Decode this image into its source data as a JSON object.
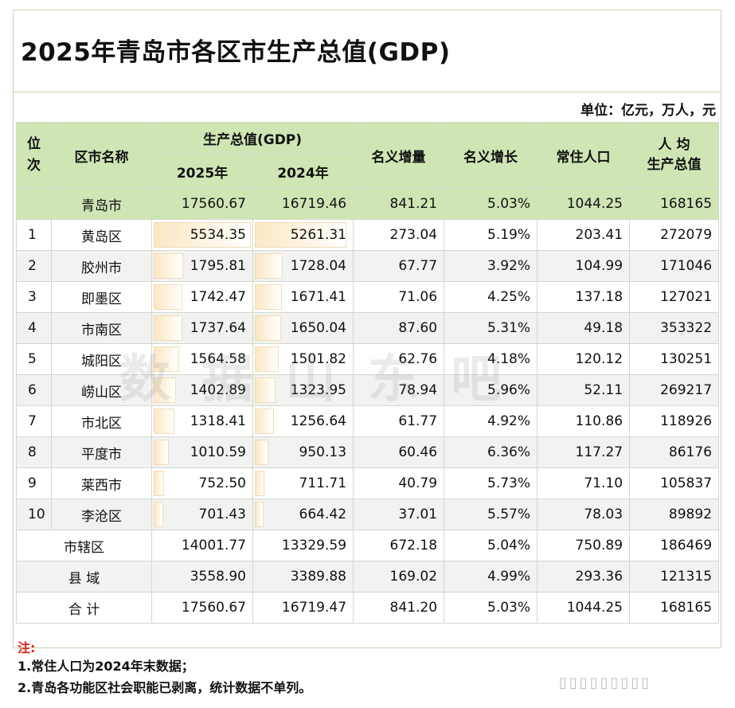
{
  "title": "2025年青岛市各区市生产总值(GDP)",
  "unit": "单位：亿元，万人，元",
  "headers": {
    "rank": "位次",
    "name": "区市名称",
    "gdp": "生产总值(GDP)",
    "y2025": "2025年",
    "y2024": "2024年",
    "nominal_increase": "名义增量",
    "nominal_growth": "名义增长",
    "population": "常住人口",
    "per_capita": "人 均\n生产总值"
  },
  "city_total": {
    "name": "青岛市",
    "gdp2025": "17560.67",
    "gdp2024": "16719.46",
    "increase": "841.21",
    "growth": "5.03%",
    "population": "1044.25",
    "per_capita": "168165"
  },
  "rows": [
    {
      "rank": "1",
      "name": "黄岛区",
      "gdp2025": "5534.35",
      "gdp2024": "5261.31",
      "increase": "273.04",
      "growth": "5.19%",
      "population": "203.41",
      "per_capita": "272079",
      "v2025": 5534.35,
      "v2024": 5261.31
    },
    {
      "rank": "2",
      "name": "胶州市",
      "gdp2025": "1795.81",
      "gdp2024": "1728.04",
      "increase": "67.77",
      "growth": "3.92%",
      "population": "104.99",
      "per_capita": "171046",
      "v2025": 1795.81,
      "v2024": 1728.04
    },
    {
      "rank": "3",
      "name": "即墨区",
      "gdp2025": "1742.47",
      "gdp2024": "1671.41",
      "increase": "71.06",
      "growth": "4.25%",
      "population": "137.18",
      "per_capita": "127021",
      "v2025": 1742.47,
      "v2024": 1671.41
    },
    {
      "rank": "4",
      "name": "市南区",
      "gdp2025": "1737.64",
      "gdp2024": "1650.04",
      "increase": "87.60",
      "growth": "5.31%",
      "population": "49.18",
      "per_capita": "353322",
      "v2025": 1737.64,
      "v2024": 1650.04
    },
    {
      "rank": "5",
      "name": "城阳区",
      "gdp2025": "1564.58",
      "gdp2024": "1501.82",
      "increase": "62.76",
      "growth": "4.18%",
      "population": "120.12",
      "per_capita": "130251",
      "v2025": 1564.58,
      "v2024": 1501.82
    },
    {
      "rank": "6",
      "name": "崂山区",
      "gdp2025": "1402.89",
      "gdp2024": "1323.95",
      "increase": "78.94",
      "growth": "5.96%",
      "population": "52.11",
      "per_capita": "269217",
      "v2025": 1402.89,
      "v2024": 1323.95
    },
    {
      "rank": "7",
      "name": "市北区",
      "gdp2025": "1318.41",
      "gdp2024": "1256.64",
      "increase": "61.77",
      "growth": "4.92%",
      "population": "110.86",
      "per_capita": "118926",
      "v2025": 1318.41,
      "v2024": 1256.64
    },
    {
      "rank": "8",
      "name": "平度市",
      "gdp2025": "1010.59",
      "gdp2024": "950.13",
      "increase": "60.46",
      "growth": "6.36%",
      "population": "117.27",
      "per_capita": "86176",
      "v2025": 1010.59,
      "v2024": 950.13
    },
    {
      "rank": "9",
      "name": "莱西市",
      "gdp2025": "752.50",
      "gdp2024": "711.71",
      "increase": "40.79",
      "growth": "5.73%",
      "population": "71.10",
      "per_capita": "105837",
      "v2025": 752.5,
      "v2024": 711.71
    },
    {
      "rank": "10",
      "name": "李沧区",
      "gdp2025": "701.43",
      "gdp2024": "664.42",
      "increase": "37.01",
      "growth": "5.57%",
      "population": "78.03",
      "per_capita": "89892",
      "v2025": 701.43,
      "v2024": 664.42
    }
  ],
  "summary": [
    {
      "name": "市辖区",
      "gdp2025": "14001.77",
      "gdp2024": "13329.59",
      "increase": "672.18",
      "growth": "5.04%",
      "population": "750.89",
      "per_capita": "186469"
    },
    {
      "name": "县 域",
      "gdp2025": "3558.90",
      "gdp2024": "3389.88",
      "increase": "169.02",
      "growth": "4.99%",
      "population": "293.36",
      "per_capita": "121315"
    },
    {
      "name": "合 计",
      "gdp2025": "17560.67",
      "gdp2024": "16719.47",
      "increase": "841.20",
      "growth": "5.03%",
      "population": "1044.25",
      "per_capita": "168165"
    }
  ],
  "notes": {
    "label": "注:",
    "items": [
      "1.常住人口为2024年末数据；",
      "2.青岛各功能区社会职能已剥离，统计数据不单列。"
    ]
  },
  "watermark": "数据山东吧",
  "colors": {
    "header_bg": "#cfe5b4",
    "bar_fill": "#fbe7c4",
    "note_red": "#e0221b"
  }
}
